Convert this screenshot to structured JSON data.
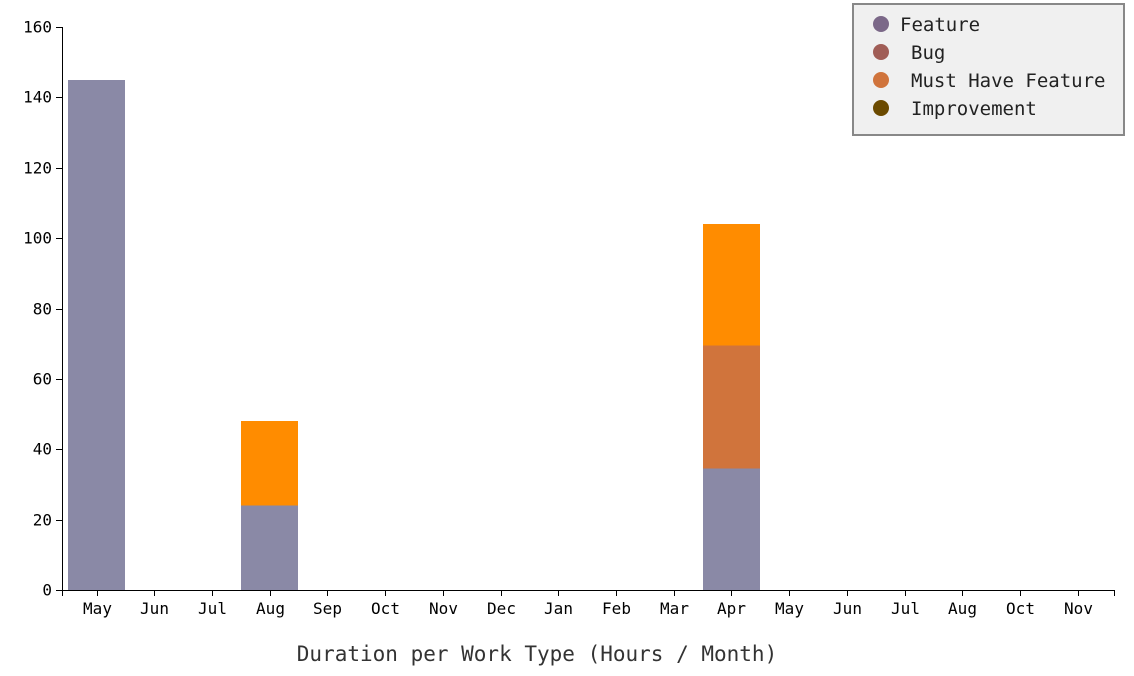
{
  "chart_data": {
    "type": "bar",
    "stacked": true,
    "categories": [
      "May",
      "Jun",
      "Jul",
      "Aug",
      "Sep",
      "Oct",
      "Nov",
      "Dec",
      "Jan",
      "Feb",
      "Mar",
      "Apr",
      "May",
      "Jun",
      "Jul",
      "Aug",
      "Oct",
      "Nov"
    ],
    "series": [
      {
        "name": "Feature",
        "color": "#8a89a6",
        "legend_color": "#7b6888",
        "values": [
          145,
          0,
          0,
          24,
          0,
          0,
          0,
          0,
          0,
          0,
          0,
          34.5,
          0,
          0,
          0,
          0,
          0,
          0
        ]
      },
      {
        "name": "Bug",
        "color": "#a05d56",
        "legend_color": "#a05d56",
        "values": [
          0,
          0,
          0,
          0,
          0,
          0,
          0,
          0,
          0,
          0,
          0,
          0,
          0,
          0,
          0,
          0,
          0,
          0
        ]
      },
      {
        "name": "Must Have Feature",
        "color": "#d0743c",
        "legend_color": "#d0743c",
        "values": [
          0,
          0,
          0,
          0,
          0,
          0,
          0,
          0,
          0,
          0,
          0,
          35,
          0,
          0,
          0,
          0,
          0,
          0
        ]
      },
      {
        "name": "Improvement",
        "color": "#ff8c00",
        "legend_color": "#6b4a00",
        "values": [
          0,
          0,
          0,
          24,
          0,
          0,
          0,
          0,
          0,
          0,
          0,
          34.5,
          0,
          0,
          0,
          0,
          0,
          0
        ]
      }
    ],
    "xlabel": "Duration per Work Type (Hours / Month)",
    "ylabel": "",
    "ylim": [
      0,
      160
    ],
    "yticks": [
      0,
      20,
      40,
      60,
      80,
      100,
      120,
      140,
      160
    ],
    "grid": false,
    "legend_position": "top-right"
  }
}
